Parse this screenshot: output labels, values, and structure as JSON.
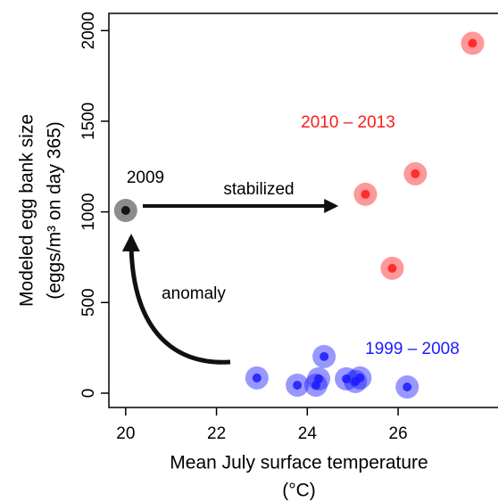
{
  "chart_data": {
    "type": "scatter",
    "x_label": "Mean July surface temperature",
    "x_unit": "(°C)",
    "y_label": "Modeled egg bank size",
    "y_unit": "(eggs/m³ on day 365)",
    "xlim": [
      19.63,
      28.2
    ],
    "ylim": [
      -79,
      2095
    ],
    "xticks": [
      20,
      22,
      24,
      26
    ],
    "yticks": [
      0,
      500,
      1000,
      1500,
      2000
    ],
    "grid": false,
    "series": [
      {
        "name": "1999 – 2008",
        "color": "#1a1aff",
        "x": [
          22.89,
          23.78,
          24.19,
          24.25,
          24.37,
          24.86,
          25.06,
          25.16,
          26.2
        ],
        "values": [
          84,
          44,
          44,
          79,
          202,
          79,
          64,
          84,
          34
        ]
      },
      {
        "name": "2009",
        "color": "#000000",
        "x": [
          20.0
        ],
        "values": [
          1008
        ]
      },
      {
        "name": "2010 – 2013",
        "color": "#ff1a1a",
        "x": [
          25.28,
          26.38,
          25.87,
          27.64
        ],
        "values": [
          1097,
          1210,
          689,
          1930
        ]
      }
    ],
    "annotations": [
      "stabilized",
      "anomaly"
    ]
  }
}
